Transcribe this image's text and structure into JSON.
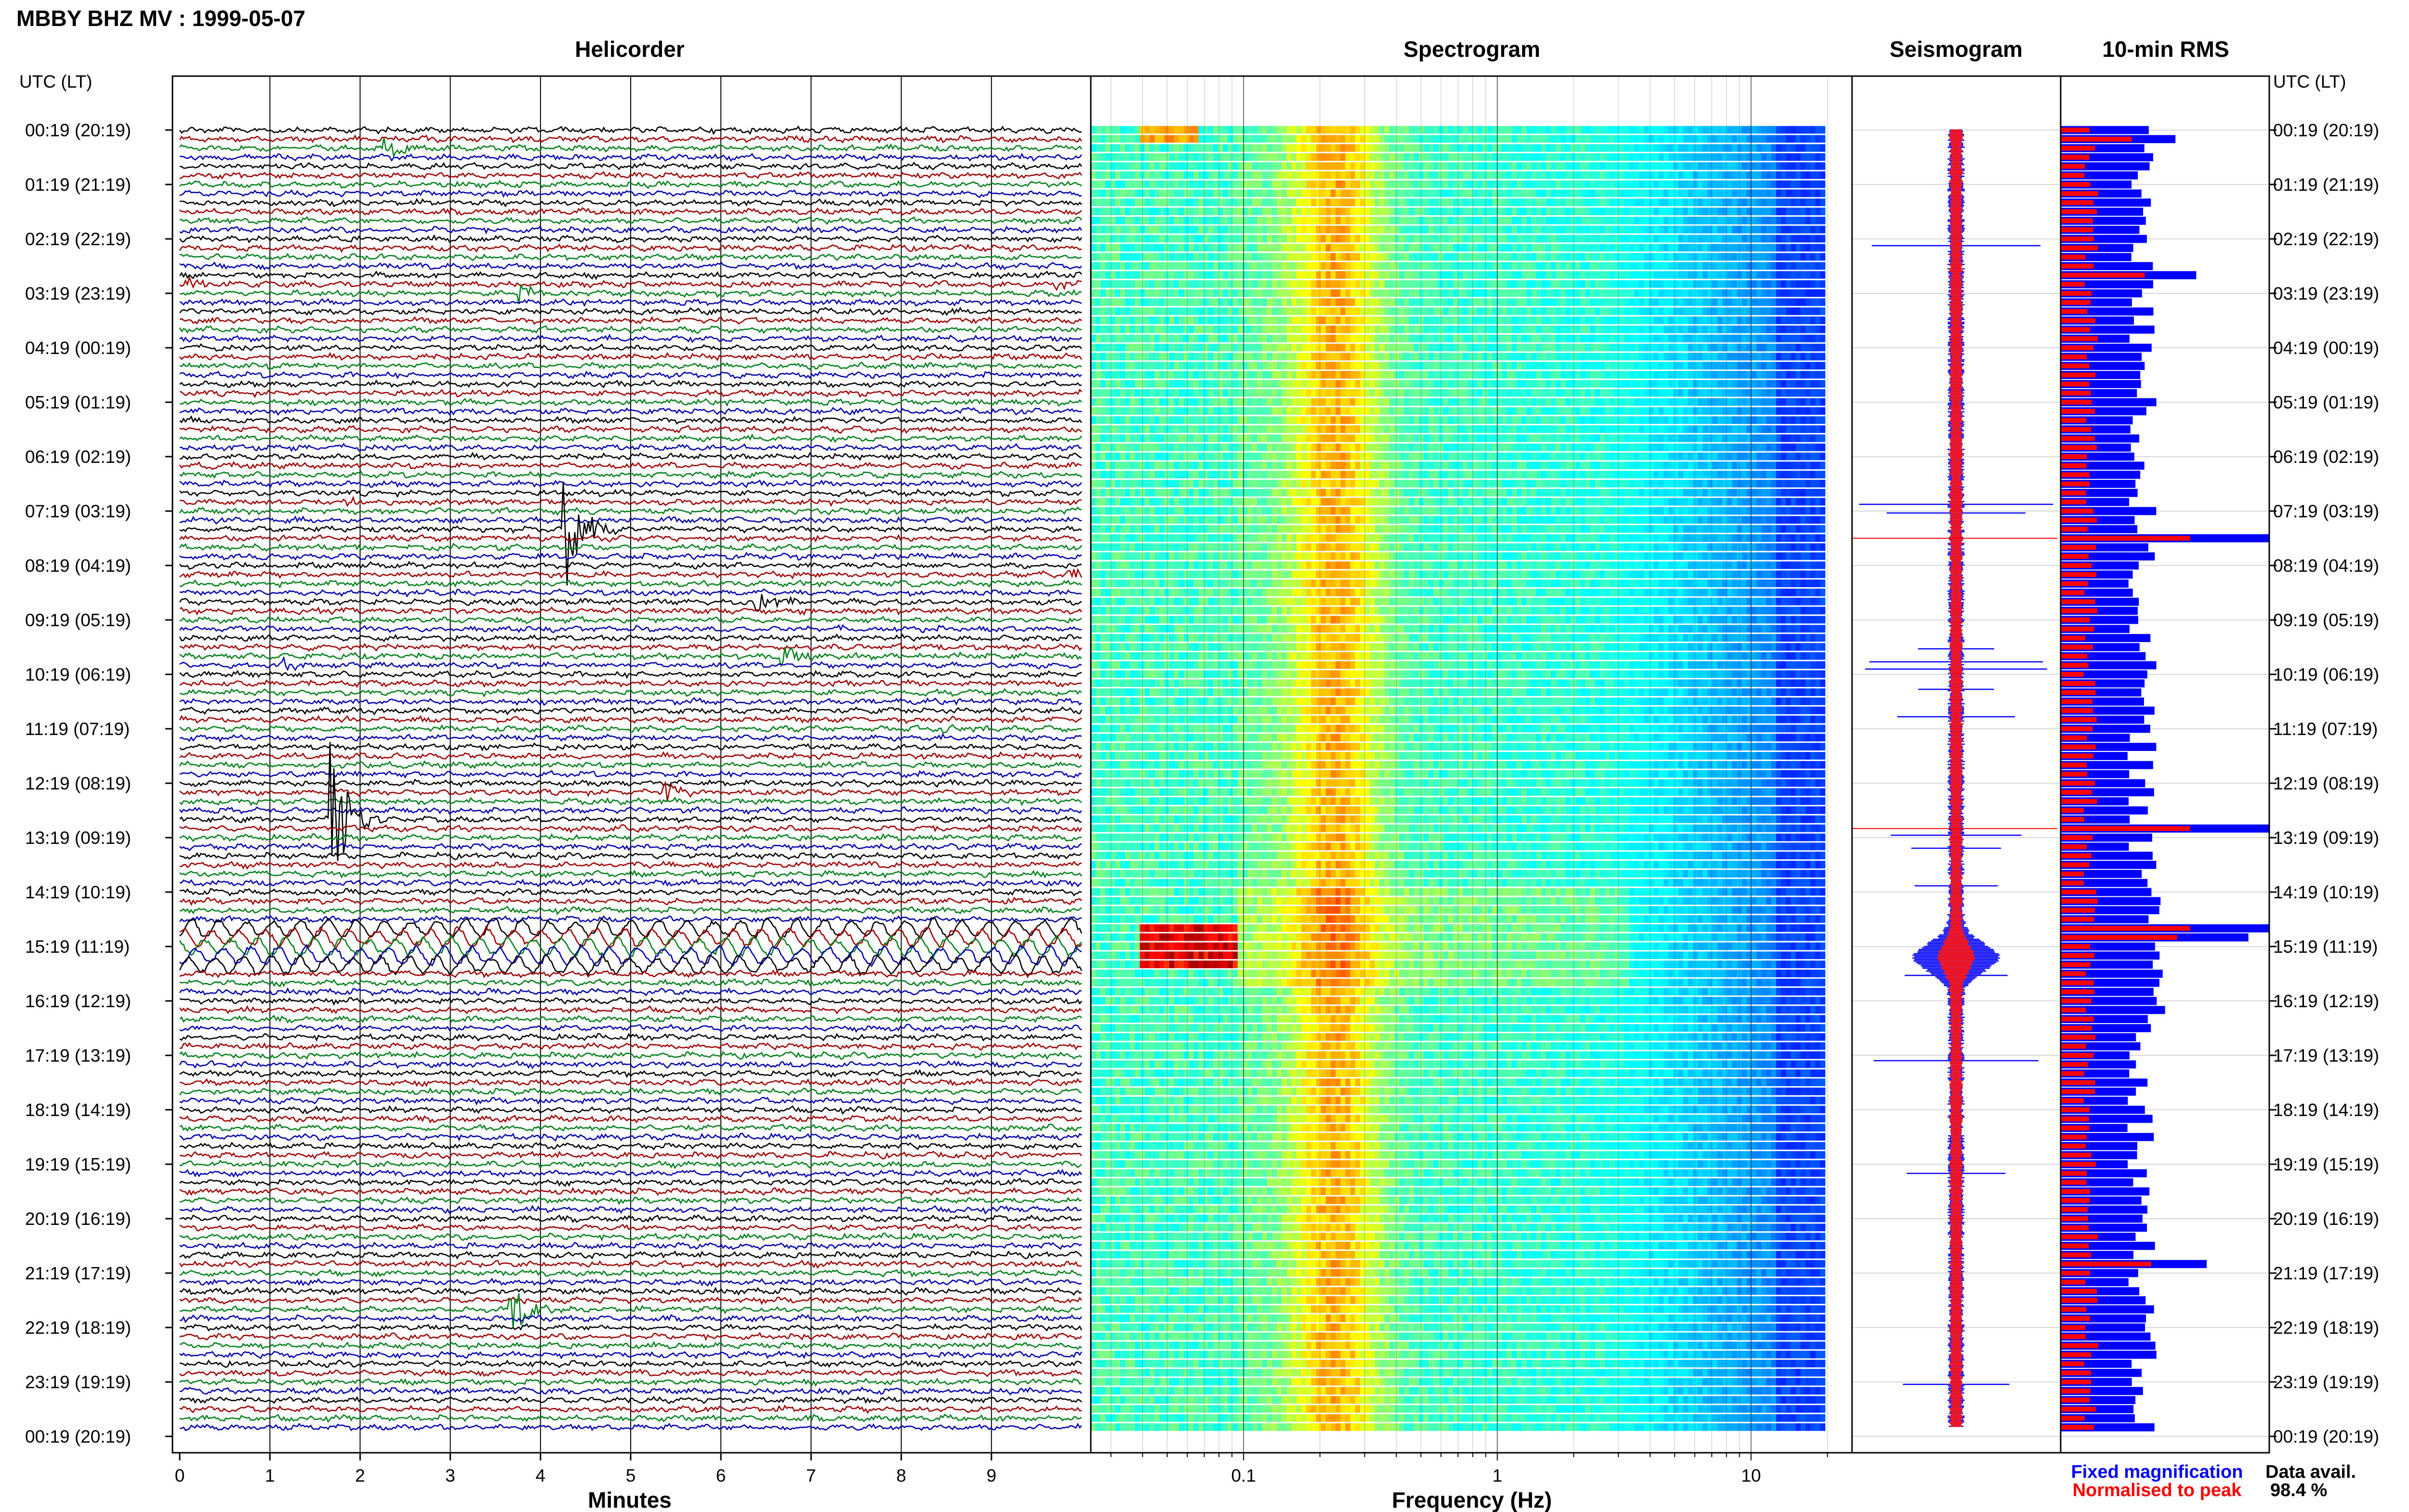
{
  "title": "MBBY BHZ MV : 1999-05-07",
  "colors": {
    "trace_cycle": [
      "#000000",
      "#a00000",
      "#00801a",
      "#0000b0"
    ],
    "fixed": "#0000ff",
    "normalised": "#ff0000",
    "grid": "#000000"
  },
  "time_axis": {
    "header": "UTC (LT)",
    "labels": [
      "00:19 (20:19)",
      "01:19 (21:19)",
      "02:19 (22:19)",
      "03:19 (23:19)",
      "04:19 (00:19)",
      "05:19 (01:19)",
      "06:19 (02:19)",
      "07:19 (03:19)",
      "08:19 (04:19)",
      "09:19 (05:19)",
      "10:19 (06:19)",
      "11:19 (07:19)",
      "12:19 (08:19)",
      "13:19 (09:19)",
      "14:19 (10:19)",
      "15:19 (11:19)",
      "16:19 (12:19)",
      "17:19 (13:19)",
      "18:19 (14:19)",
      "19:19 (15:19)",
      "20:19 (16:19)",
      "21:19 (17:19)",
      "22:19 (18:19)",
      "23:19 (19:19)",
      "00:19 (20:19)"
    ]
  },
  "chart_data": [
    {
      "type": "line",
      "panel": "helicorder",
      "title": "Helicorder",
      "xlabel": "Minutes",
      "xlim": [
        0,
        10
      ],
      "x_ticks": [
        0,
        1,
        2,
        3,
        4,
        5,
        6,
        7,
        8,
        9
      ],
      "rows": 144,
      "events": [
        {
          "row": 2,
          "minute": 2.3,
          "amplitude": 0.8
        },
        {
          "row": 17,
          "minute": 0.1,
          "amplitude": 0.6
        },
        {
          "row": 17,
          "minute": 9.7,
          "amplitude": 0.5
        },
        {
          "row": 18,
          "minute": 3.8,
          "amplitude": 0.9
        },
        {
          "row": 41,
          "minute": 1.9,
          "amplitude": 0.4
        },
        {
          "row": 44,
          "minute": 4.3,
          "amplitude": 5.5
        },
        {
          "row": 49,
          "minute": 9.9,
          "amplitude": 0.6
        },
        {
          "row": 52,
          "minute": 6.4,
          "amplitude": 1.2
        },
        {
          "row": 58,
          "minute": 6.7,
          "amplitude": 1.0
        },
        {
          "row": 59,
          "minute": 1.2,
          "amplitude": 0.5
        },
        {
          "row": 66,
          "minute": 8.5,
          "amplitude": 0.4
        },
        {
          "row": 73,
          "minute": 5.4,
          "amplitude": 0.9
        },
        {
          "row": 76,
          "minute": 1.7,
          "amplitude": 7.0
        },
        {
          "row": 130,
          "minute": 3.7,
          "amplitude": 2.0
        }
      ],
      "strong_shaking_rows": [
        88,
        92
      ]
    },
    {
      "type": "heatmap",
      "panel": "spectrogram",
      "title": "Spectrogram",
      "xlabel": "Frequency (Hz)",
      "x_scale": "log",
      "xlim": [
        0.025,
        25
      ],
      "x_ticks": [
        0.1,
        1,
        10
      ],
      "rows": 144,
      "peak_band_hz": [
        0.2,
        0.3
      ],
      "event_rows": [
        88,
        92
      ],
      "event_band_hz": [
        0.04,
        0.1
      ]
    },
    {
      "type": "line",
      "panel": "seismogram",
      "title": "Seismogram",
      "series": [
        {
          "name": "Fixed magnification",
          "color": "#0000ff"
        },
        {
          "name": "Normalised to peak",
          "color": "#ff0000"
        }
      ],
      "max_amplitude_hour": 15.2
    },
    {
      "type": "bar",
      "panel": "rms",
      "title": "10-min RMS",
      "rows": 144,
      "series": [
        {
          "name": "Fixed magnification",
          "color": "#0000ff"
        },
        {
          "name": "Normalised to peak",
          "color": "#ff0000"
        }
      ],
      "fixed_spikes": [
        {
          "row": 1,
          "value": 0.55
        },
        {
          "row": 16,
          "value": 0.65
        },
        {
          "row": 45,
          "value": 1.0
        },
        {
          "row": 77,
          "value": 1.0
        },
        {
          "row": 88,
          "value": 1.0
        },
        {
          "row": 89,
          "value": 0.9
        },
        {
          "row": 125,
          "value": 0.7
        }
      ]
    }
  ],
  "legend": {
    "fixed": "Fixed magnification",
    "normalised": "Normalised to peak"
  },
  "data_availability": {
    "label": "Data avail.",
    "value": "98.4 %"
  }
}
